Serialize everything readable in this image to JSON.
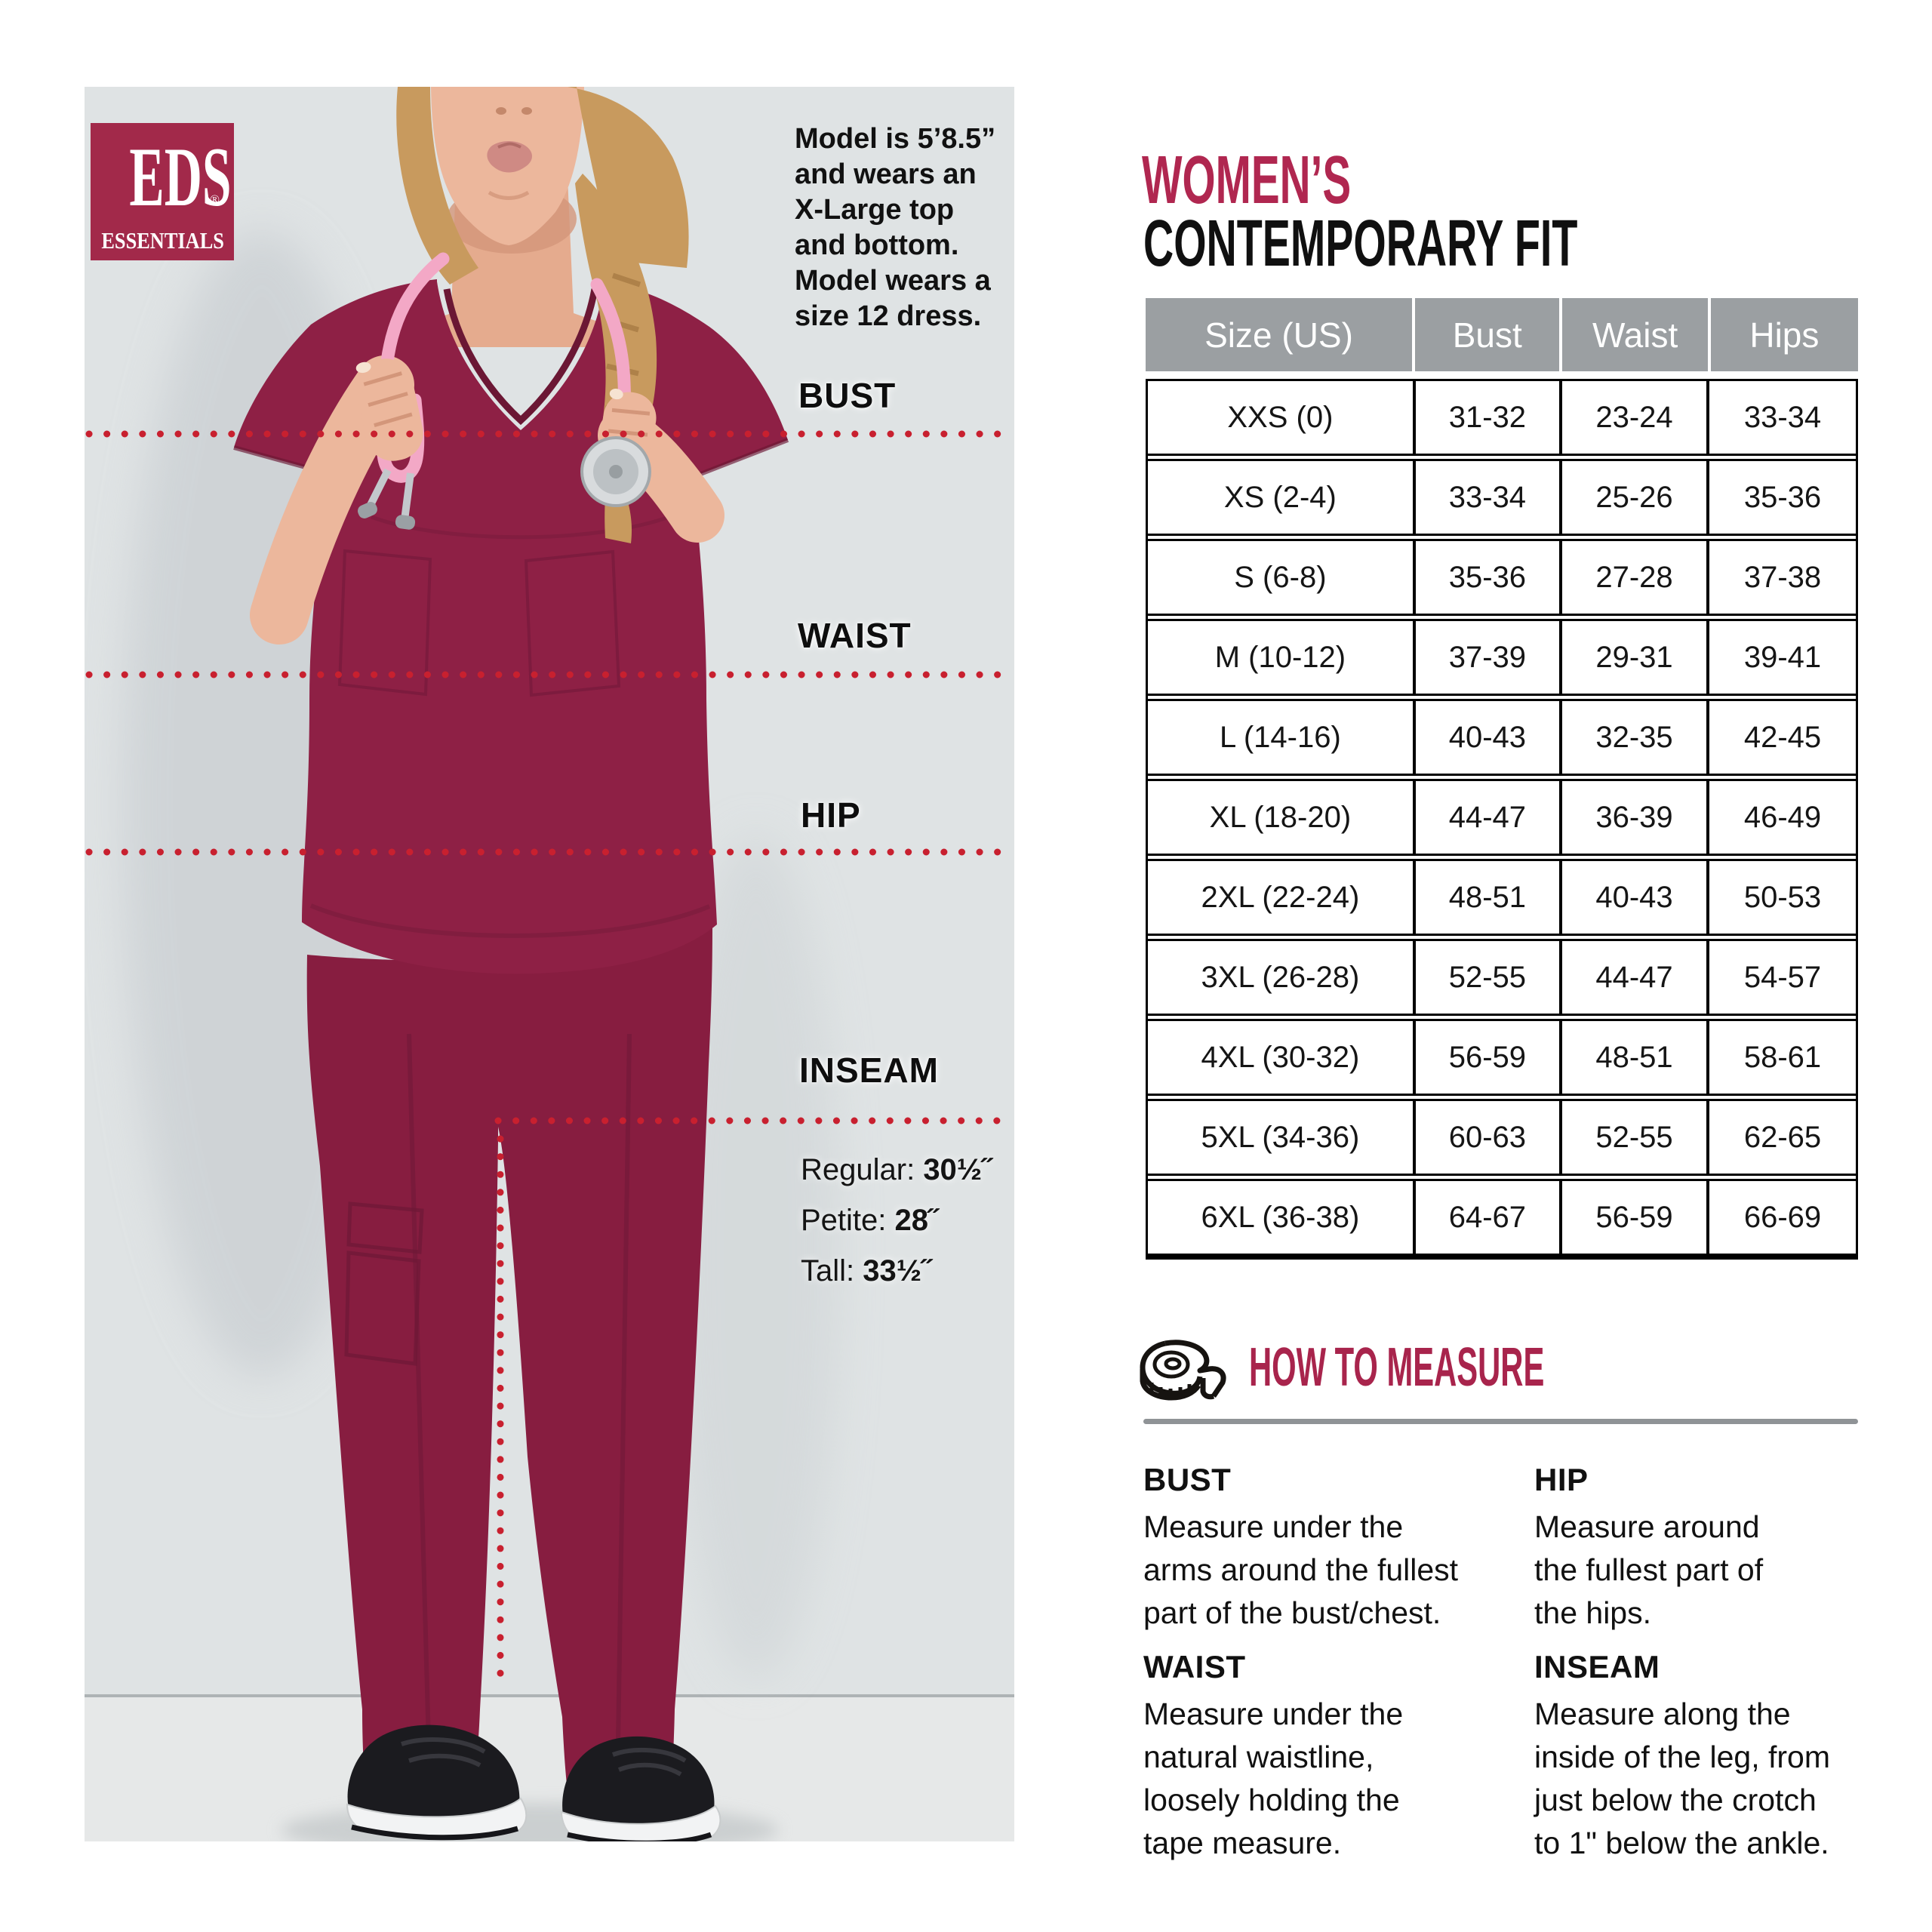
{
  "colors": {
    "crimson_title": "#b02750",
    "logo_red": "#a2294a",
    "how_to_measure_red": "#a8244c",
    "panel_background": "#dfe3e4",
    "table_header_gray": "#9b9fa2",
    "dotted_line_red": "#c8202f",
    "scrub_burgundy": "#8e2045",
    "divider_gray": "#8f9396"
  },
  "logo": {
    "line1": "EDS",
    "registered_mark": "®",
    "line2": "ESSENTIALS"
  },
  "model_note": "Model is 5’8.5”\nand wears an\nX-Large top\nand bottom.\nModel wears a\nsize 12 dress.",
  "measurement_labels": {
    "bust": "BUST",
    "waist": "WAIST",
    "hip": "HIP",
    "inseam": "INSEAM"
  },
  "inseam_details": {
    "rows": [
      {
        "label": "Regular: ",
        "value": "30½˝"
      },
      {
        "label": "Petite: ",
        "value": "28˝"
      },
      {
        "label": "Tall: ",
        "value": "33½˝"
      }
    ]
  },
  "header": {
    "title_line1": "WOMEN’S",
    "title_line2": "CONTEMPORARY FIT"
  },
  "size_table": {
    "columns": [
      "Size (US)",
      "Bust",
      "Waist",
      "Hips"
    ],
    "rows": [
      [
        "XXS (0)",
        "31-32",
        "23-24",
        "33-34"
      ],
      [
        "XS (2-4)",
        "33-34",
        "25-26",
        "35-36"
      ],
      [
        "S (6-8)",
        "35-36",
        "27-28",
        "37-38"
      ],
      [
        "M (10-12)",
        "37-39",
        "29-31",
        "39-41"
      ],
      [
        "L (14-16)",
        "40-43",
        "32-35",
        "42-45"
      ],
      [
        "XL (18-20)",
        "44-47",
        "36-39",
        "46-49"
      ],
      [
        "2XL (22-24)",
        "48-51",
        "40-43",
        "50-53"
      ],
      [
        "3XL (26-28)",
        "52-55",
        "44-47",
        "54-57"
      ],
      [
        "4XL (30-32)",
        "56-59",
        "48-51",
        "58-61"
      ],
      [
        "5XL (34-36)",
        "60-63",
        "52-55",
        "62-65"
      ],
      [
        "6XL (36-38)",
        "64-67",
        "56-59",
        "66-69"
      ]
    ]
  },
  "how_to_measure": {
    "icon": "tape-measure-icon",
    "title": "HOW TO MEASURE",
    "sections": [
      {
        "heading": "BUST",
        "body": "Measure under the\narms around the fullest\npart of the bust/chest."
      },
      {
        "heading": "WAIST",
        "body": "Measure under the\nnatural waistline,\nloosely holding the\ntape measure."
      },
      {
        "heading": "HIP",
        "body": "Measure around\nthe fullest part of\nthe hips."
      },
      {
        "heading": "INSEAM",
        "body": "Measure along the\ninside of the leg, from\njust below the crotch\nto 1\" below the ankle."
      }
    ]
  }
}
